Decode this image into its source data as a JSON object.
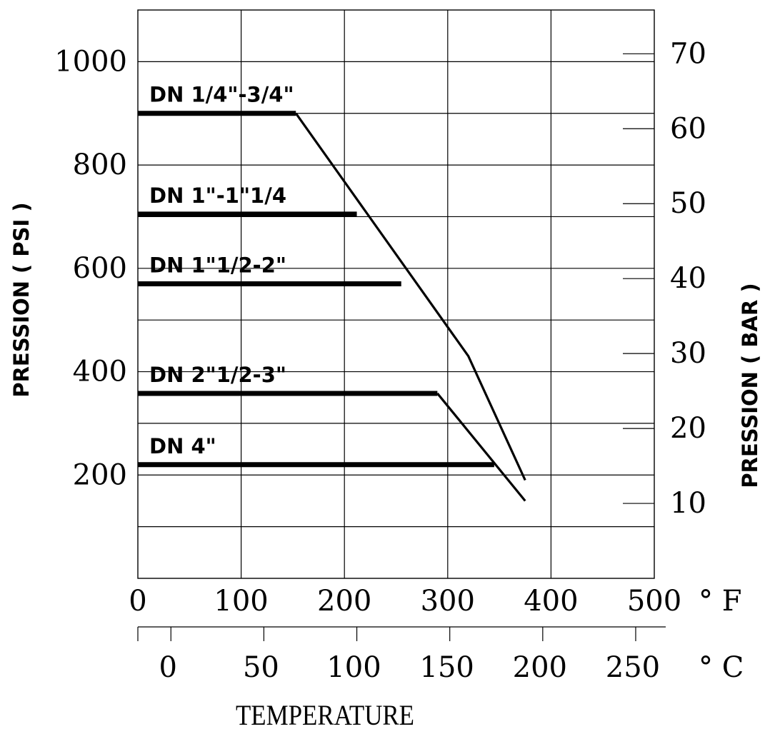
{
  "chart_data": {
    "type": "line",
    "title": "",
    "ylabel_left": "PRESSION ( PSI )",
    "ylabel_right": "PRESSION ( BAR )",
    "xlabel": "TEMPERATURE",
    "x_unit_f": "° F",
    "x_unit_c": "° C",
    "xlim_f": [
      0,
      500
    ],
    "ylim_psi": [
      0,
      1100
    ],
    "x_ticks_f": [
      "0",
      "100",
      "200",
      "300",
      "400",
      "500"
    ],
    "x_ticks_c": [
      "0",
      "50",
      "100",
      "150",
      "200",
      "250"
    ],
    "y_ticks_psi": [
      "200",
      "400",
      "600",
      "800",
      "1000"
    ],
    "y_ticks_bar": [
      "10",
      "20",
      "30",
      "40",
      "50",
      "60",
      "70"
    ],
    "grid": true,
    "series": [
      {
        "name": "DN 1/4\"-3/4\"",
        "x": [
          0,
          153,
          320,
          375
        ],
        "y": [
          900,
          900,
          430,
          190
        ]
      },
      {
        "name": "DN 1\"-1\"1/4",
        "x": [
          0,
          212
        ],
        "y": [
          705,
          705
        ]
      },
      {
        "name": "DN 1\"1/2-2\"",
        "x": [
          0,
          255
        ],
        "y": [
          570,
          570
        ]
      },
      {
        "name": "DN 2\"1/2-3\"",
        "x": [
          0,
          290,
          375
        ],
        "y": [
          358,
          358,
          150
        ]
      },
      {
        "name": "DN 4\"",
        "x": [
          0,
          345
        ],
        "y": [
          220,
          220
        ]
      }
    ]
  }
}
